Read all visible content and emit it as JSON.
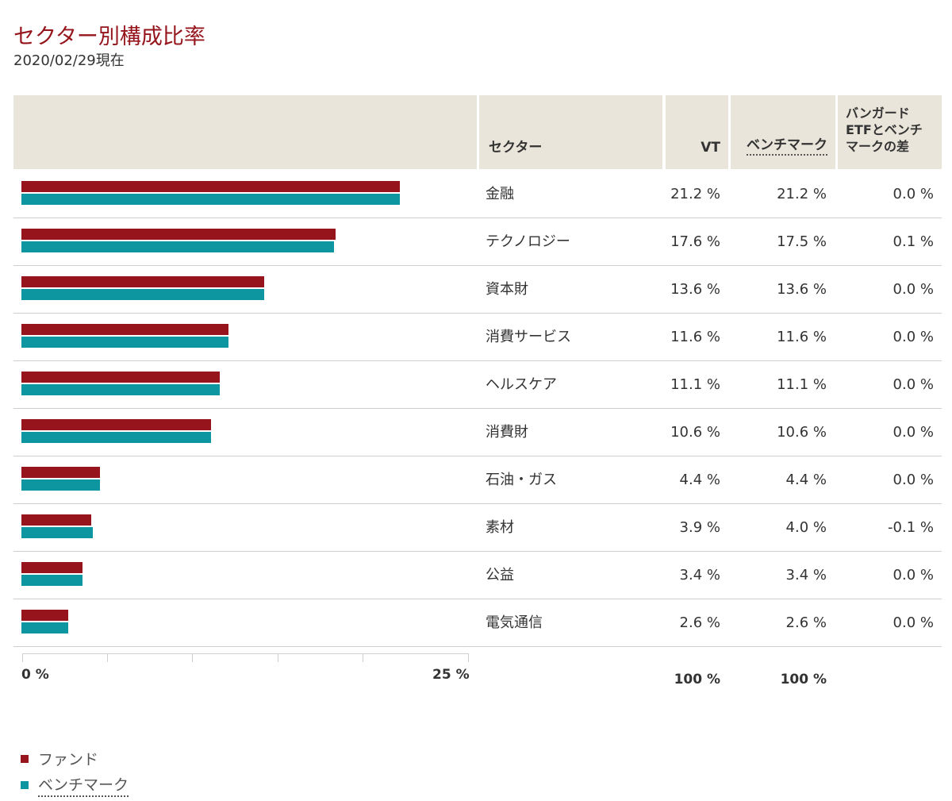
{
  "page": {
    "title": "セクター別構成比率",
    "as_of": "2020/02/29現在"
  },
  "colors": {
    "fund": "#96151d",
    "benchmark": "#0e96a0",
    "header_bg": "#e9e5da"
  },
  "table": {
    "headers": {
      "sector": "セクター",
      "vt": "VT",
      "benchmark": "ベンチマーク",
      "diff": "バンガードETFとベンチマークの差",
      "diff_lines": [
        "バンガード",
        "ETFとベンチ",
        "マークの差"
      ]
    },
    "totals": {
      "vt": "100 %",
      "benchmark": "100 %"
    }
  },
  "axis": {
    "min_label": "0 %",
    "max_label": "25 %"
  },
  "legend": {
    "fund": "ファンド",
    "benchmark": "ベンチマーク"
  },
  "chart_data": {
    "type": "bar",
    "orientation": "horizontal",
    "categories": [
      "金融",
      "テクノロジー",
      "資本財",
      "消費サービス",
      "ヘルスケア",
      "消費財",
      "石油・ガス",
      "素材",
      "公益",
      "電気通信"
    ],
    "xlim": [
      0,
      25
    ],
    "series": [
      {
        "name": "ファンド",
        "values": [
          21.2,
          17.6,
          13.6,
          11.6,
          11.1,
          10.6,
          4.4,
          3.9,
          3.4,
          2.6
        ]
      },
      {
        "name": "ベンチマーク",
        "values": [
          21.2,
          17.5,
          13.6,
          11.6,
          11.1,
          10.6,
          4.4,
          4.0,
          3.4,
          2.6
        ]
      }
    ],
    "vt_labels": [
      "21.2 %",
      "17.6 %",
      "13.6 %",
      "11.6 %",
      "11.1 %",
      "10.6 %",
      "4.4 %",
      "3.9 %",
      "3.4 %",
      "2.6 %"
    ],
    "benchmark_labels": [
      "21.2 %",
      "17.5 %",
      "13.6 %",
      "11.6 %",
      "11.1 %",
      "10.6 %",
      "4.4 %",
      "4.0 %",
      "3.4 %",
      "2.6 %"
    ],
    "diff_labels": [
      "0.0 %",
      "0.1 %",
      "0.0 %",
      "0.0 %",
      "0.0 %",
      "0.0 %",
      "0.0 %",
      "-0.1 %",
      "0.0 %",
      "0.0 %"
    ],
    "legend_position": "bottom-left",
    "grid": false
  }
}
